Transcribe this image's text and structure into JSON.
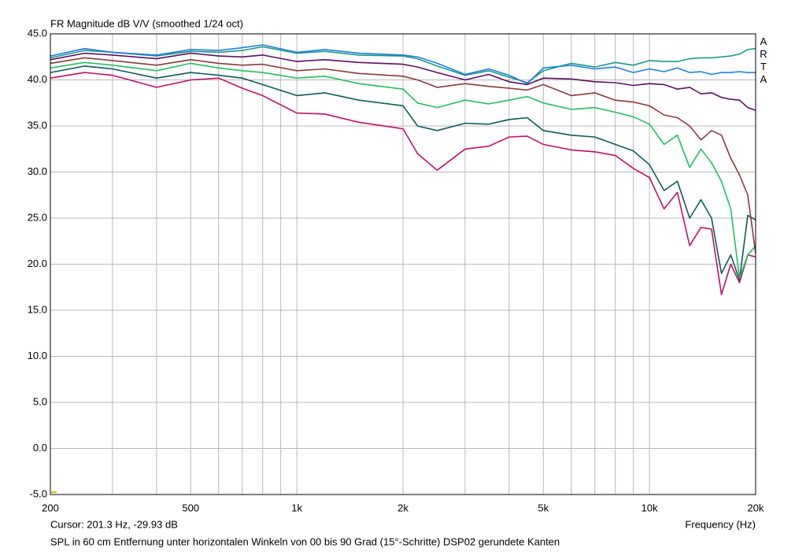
{
  "chart_data": {
    "type": "line",
    "title": "FR Magnitude dB V/V (smoothed 1/24 oct)",
    "logo": "ARTA",
    "cursor": "Cursor: 201.3 Hz, -29.93 dB",
    "x_label": "Frequency (Hz)",
    "caption": "SPL in 60 cm Entfernung unter horizontalen Winkeln von 00 bis 90 Grad (15°-Schritte) DSP02 gerundete Kanten",
    "xscale": "log",
    "grid": true,
    "xlim": [
      200,
      20000
    ],
    "ylim": [
      -5,
      45
    ],
    "xticks": [
      200,
      500,
      {
        "value": 1000,
        "label": "1k"
      },
      {
        "value": 2000,
        "label": "2k"
      },
      {
        "value": 5000,
        "label": "5k"
      },
      {
        "value": 10000,
        "label": "10k"
      },
      {
        "value": 20000,
        "label": "20k"
      }
    ],
    "xminor": [
      300,
      400,
      600,
      700,
      800,
      900,
      3000,
      4000,
      6000,
      7000,
      8000,
      9000
    ],
    "yticks": [
      {
        "value": 45,
        "label": "45.0"
      },
      {
        "value": 40,
        "label": "40.0"
      },
      {
        "value": 35,
        "label": "35.0"
      },
      {
        "value": 30,
        "label": "30.0"
      },
      {
        "value": 25,
        "label": "25.0"
      },
      {
        "value": 20,
        "label": "20.0"
      },
      {
        "value": 15,
        "label": "15.0"
      },
      {
        "value": 10,
        "label": "10.0"
      },
      {
        "value": 5,
        "label": "5.0"
      },
      {
        "value": 0,
        "label": "0.0"
      },
      {
        "value": -5,
        "label": "-5.0"
      }
    ],
    "x": [
      200,
      250,
      300,
      400,
      500,
      600,
      700,
      800,
      1000,
      1200,
      1500,
      2000,
      2200,
      2500,
      3000,
      3500,
      4000,
      4500,
      5000,
      6000,
      7000,
      8000,
      9000,
      10000,
      11000,
      12000,
      13000,
      14000,
      15000,
      16000,
      17000,
      18000,
      19000,
      20000
    ],
    "series": [
      {
        "color": "#c0106a",
        "values": [
          40.2,
          40.8,
          40.5,
          39.2,
          40.0,
          40.2,
          39.1,
          38.3,
          36.4,
          36.3,
          35.4,
          34.7,
          32.0,
          30.2,
          32.5,
          32.8,
          33.8,
          33.9,
          33.0,
          32.4,
          32.2,
          31.8,
          30.4,
          29.4,
          26.0,
          27.8,
          22.0,
          24.0,
          23.8,
          16.7,
          20.0,
          18.0,
          21.0,
          20.8
        ]
      },
      {
        "color": "#0d5a5a",
        "values": [
          40.8,
          41.5,
          41.2,
          40.2,
          40.8,
          40.5,
          40.2,
          39.5,
          38.3,
          38.6,
          37.8,
          37.2,
          35.0,
          34.5,
          35.3,
          35.2,
          35.7,
          35.9,
          34.5,
          34.0,
          33.8,
          33.0,
          32.3,
          30.8,
          28.0,
          29.0,
          25.0,
          27.0,
          25.0,
          19.0,
          21.0,
          18.3,
          25.3,
          24.8
        ]
      },
      {
        "color": "#22c060",
        "values": [
          41.3,
          41.9,
          41.6,
          41.0,
          41.8,
          41.3,
          41.0,
          40.8,
          40.2,
          40.4,
          39.6,
          39.0,
          37.5,
          37.0,
          37.8,
          37.4,
          37.8,
          38.2,
          37.5,
          36.8,
          37.0,
          36.5,
          36.0,
          35.2,
          33.0,
          34.0,
          30.5,
          32.5,
          31.0,
          29.0,
          26.0,
          18.5,
          21.0,
          22.0
        ]
      },
      {
        "color": "#8b3a3a",
        "values": [
          41.8,
          42.4,
          42.1,
          41.6,
          42.2,
          41.8,
          41.6,
          41.7,
          41.0,
          41.2,
          40.7,
          40.4,
          40.0,
          39.2,
          39.6,
          39.3,
          39.1,
          38.9,
          39.5,
          38.3,
          38.6,
          37.8,
          37.6,
          37.2,
          36.2,
          35.9,
          35.0,
          33.5,
          34.5,
          34.0,
          31.5,
          29.7,
          27.5,
          21.2
        ]
      },
      {
        "color": "#5c1060",
        "values": [
          42.2,
          42.9,
          42.7,
          42.3,
          42.9,
          42.6,
          42.5,
          42.7,
          42.0,
          42.2,
          41.9,
          41.7,
          41.4,
          40.8,
          40.0,
          40.6,
          39.8,
          39.5,
          40.2,
          40.1,
          39.8,
          39.7,
          39.4,
          39.6,
          39.5,
          39.0,
          39.2,
          38.5,
          38.6,
          38.1,
          37.9,
          37.8,
          37.0,
          36.7
        ]
      },
      {
        "color": "#1a9a8a",
        "values": [
          42.4,
          43.2,
          43.0,
          42.6,
          43.1,
          43.0,
          43.2,
          43.6,
          42.9,
          43.1,
          42.7,
          42.6,
          42.3,
          41.5,
          40.5,
          41.0,
          40.3,
          39.7,
          41.0,
          41.8,
          41.4,
          41.9,
          41.6,
          42.1,
          42.0,
          42.0,
          42.3,
          42.4,
          42.4,
          42.5,
          42.6,
          42.8,
          43.3,
          43.4
        ]
      },
      {
        "color": "#1f7fe0",
        "values": [
          42.6,
          43.4,
          43.0,
          42.7,
          43.3,
          43.2,
          43.5,
          43.8,
          43.0,
          43.3,
          42.9,
          42.7,
          42.5,
          41.8,
          40.6,
          41.2,
          40.5,
          39.6,
          41.3,
          41.6,
          41.2,
          41.4,
          40.8,
          41.2,
          40.9,
          41.3,
          40.8,
          40.9,
          40.6,
          40.8,
          40.8,
          40.9,
          40.8,
          40.8
        ]
      }
    ]
  }
}
